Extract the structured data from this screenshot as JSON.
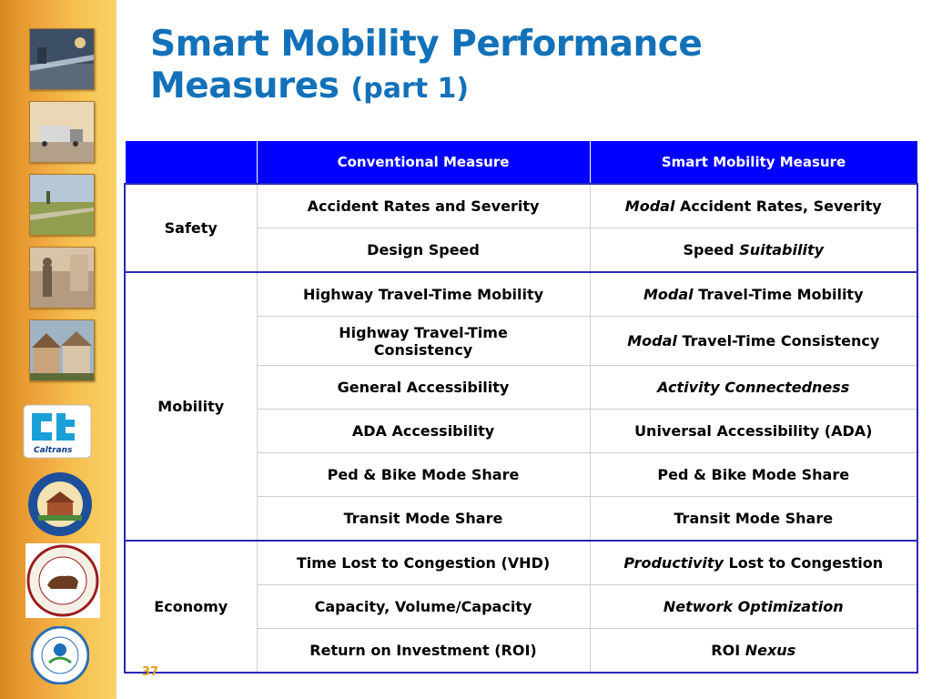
{
  "title": {
    "main_line1": "Smart Mobility Performance",
    "main_line2": "Measures",
    "sub": "(part 1)"
  },
  "colors": {
    "accent": "#1271b9",
    "header_blue": "#0000ff",
    "sidebar": "#f0a83a",
    "page_num": "#e89b16"
  },
  "sidebar": {
    "logos": [
      "caltrans-logo",
      "hcd-seal",
      "opr-seal",
      "epa-seal"
    ],
    "caltrans_text": "Caltrans"
  },
  "table": {
    "headers": {
      "category": "",
      "conventional": "Conventional Measure",
      "smart": "Smart Mobility Measure"
    },
    "groups": [
      {
        "category": "Safety",
        "rows": [
          {
            "conventional": "Accident Rates and Severity",
            "smart_em": "Modal",
            "smart_rest": "Accident Rates, Severity"
          },
          {
            "conventional": "Design Speed",
            "smart_pre": "Speed",
            "smart_em_after": "Suitability"
          }
        ]
      },
      {
        "category": "Mobility",
        "rows": [
          {
            "conventional": "Highway Travel-Time Mobility",
            "smart_em": "Modal",
            "smart_rest": "Travel-Time Mobility"
          },
          {
            "conventional": "Highway Travel-Time Consistency",
            "smart_em": "Modal",
            "smart_rest": "Travel-Time Consistency"
          },
          {
            "conventional": "General Accessibility",
            "smart_em": "Activity Connectedness"
          },
          {
            "conventional": "ADA Accessibility",
            "smart": "Universal Accessibility (ADA)"
          },
          {
            "conventional": "Ped & Bike Mode Share",
            "smart": "Ped & Bike Mode Share"
          },
          {
            "conventional": "Transit Mode Share",
            "smart": "Transit Mode Share"
          }
        ]
      },
      {
        "category": "Economy",
        "rows": [
          {
            "conventional": "Time Lost to Congestion (VHD)",
            "smart_em": "Productivity",
            "smart_rest": "Lost to Congestion"
          },
          {
            "conventional": "Capacity, Volume/Capacity",
            "smart_em": "Network Optimization"
          },
          {
            "conventional": "Return on Investment (ROI)",
            "smart_pre": "ROI",
            "smart_em_after": "Nexus"
          }
        ]
      }
    ]
  },
  "page_number": "37"
}
